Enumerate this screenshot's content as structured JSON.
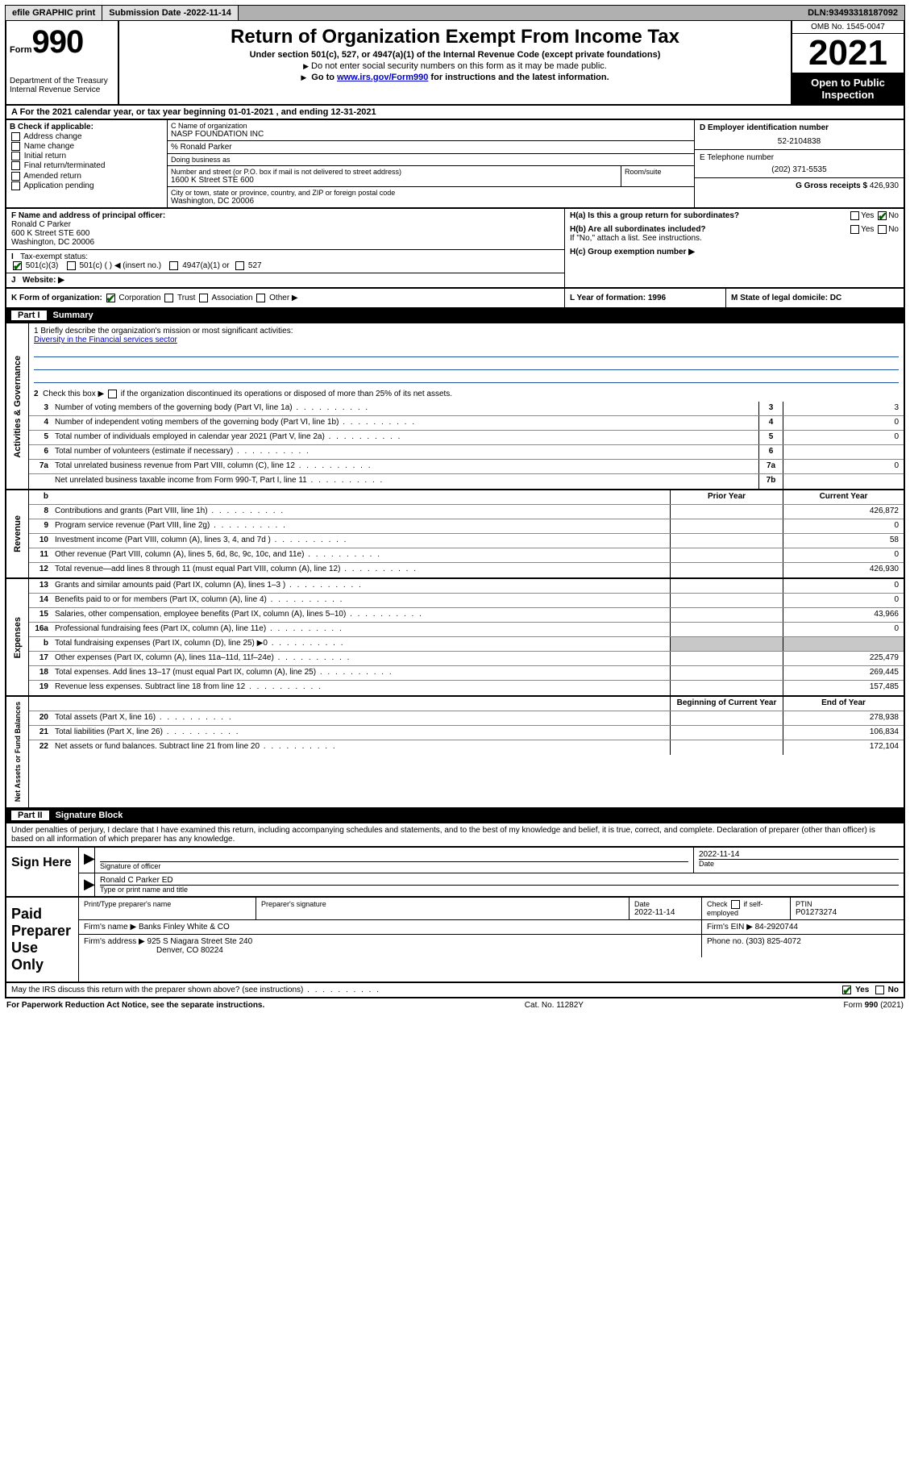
{
  "topbar": {
    "efile": "efile GRAPHIC print",
    "subdate_lbl": "Submission Date - ",
    "subdate": "2022-11-14",
    "dln_lbl": "DLN: ",
    "dln": "93493318187092"
  },
  "header": {
    "form_prefix": "Form",
    "form_num": "990",
    "dept": "Department of the Treasury",
    "irs": "Internal Revenue Service",
    "title": "Return of Organization Exempt From Income Tax",
    "sub": "Under section 501(c), 527, or 4947(a)(1) of the Internal Revenue Code (except private foundations)",
    "note1": "Do not enter social security numbers on this form as it may be made public.",
    "note2_pre": "Go to ",
    "note2_link": "www.irs.gov/Form990",
    "note2_post": " for instructions and the latest information.",
    "omb": "OMB No. 1545-0047",
    "year": "2021",
    "open": "Open to Public Inspection"
  },
  "rowA": {
    "label": "A For the 2021 calendar year, or tax year beginning ",
    "begin": "01-01-2021",
    "mid": " , and ending ",
    "end": "12-31-2021"
  },
  "B": {
    "hdr": "B Check if applicable:",
    "items": [
      "Address change",
      "Name change",
      "Initial return",
      "Final return/terminated",
      "Amended return",
      "Application pending"
    ]
  },
  "C": {
    "name_lbl": "C Name of organization",
    "name": "NASP FOUNDATION INC",
    "care_lbl": "% Ronald Parker",
    "dba_lbl": "Doing business as",
    "street_lbl": "Number and street (or P.O. box if mail is not delivered to street address)",
    "room_lbl": "Room/suite",
    "street": "1600 K Street STE 600",
    "city_lbl": "City or town, state or province, country, and ZIP or foreign postal code",
    "city": "Washington, DC  20006"
  },
  "D": {
    "lbl": "D Employer identification number",
    "val": "52-2104838"
  },
  "E": {
    "lbl": "E Telephone number",
    "val": "(202) 371-5535"
  },
  "G": {
    "lbl": "G Gross receipts $ ",
    "val": "426,930"
  },
  "F": {
    "lbl": "F  Name and address of principal officer:",
    "name": "Ronald C Parker",
    "addr1": "600 K Street STE 600",
    "addr2": "Washington, DC  20006"
  },
  "I": {
    "lbl": "Tax-exempt status:",
    "c3": "501(c)(3)",
    "c": "501(c) (  ) ◀ (insert no.)",
    "a1": "4947(a)(1) or",
    "s527": "527"
  },
  "J": {
    "lbl": "Website: ▶"
  },
  "H": {
    "a": "H(a)  Is this a group return for subordinates?",
    "b": "H(b)  Are all subordinates included?",
    "b_note": "If \"No,\" attach a list. See instructions.",
    "c": "H(c)  Group exemption number ▶",
    "yes": "Yes",
    "no": "No"
  },
  "K": {
    "lbl": "K Form of organization:",
    "corp": "Corporation",
    "trust": "Trust",
    "assoc": "Association",
    "other": "Other ▶",
    "L": "L Year of formation: 1996",
    "M": "M State of legal domicile: DC"
  },
  "part1": {
    "num": "Part I",
    "title": "Summary"
  },
  "mission": {
    "q1": "1   Briefly describe the organization's mission or most significant activities:",
    "text": "Diversity in the Financial services sector",
    "q2": "2   Check this box ▶        if the organization discontinued its operations or disposed of more than 25% of its net assets."
  },
  "gov_rows": [
    {
      "n": "3",
      "lbl": "Number of voting members of the governing body (Part VI, line 1a)",
      "box": "3",
      "val": "3"
    },
    {
      "n": "4",
      "lbl": "Number of independent voting members of the governing body (Part VI, line 1b)",
      "box": "4",
      "val": "0"
    },
    {
      "n": "5",
      "lbl": "Total number of individuals employed in calendar year 2021 (Part V, line 2a)",
      "box": "5",
      "val": "0"
    },
    {
      "n": "6",
      "lbl": "Total number of volunteers (estimate if necessary)",
      "box": "6",
      "val": ""
    },
    {
      "n": "7a",
      "lbl": "Total unrelated business revenue from Part VIII, column (C), line 12",
      "box": "7a",
      "val": "0"
    },
    {
      "n": "",
      "lbl": "Net unrelated business taxable income from Form 990-T, Part I, line 11",
      "box": "7b",
      "val": ""
    }
  ],
  "colhdr": {
    "n": "b",
    "prior": "Prior Year",
    "current": "Current Year"
  },
  "rev_rows": [
    {
      "n": "8",
      "lbl": "Contributions and grants (Part VIII, line 1h)",
      "prior": "",
      "cur": "426,872"
    },
    {
      "n": "9",
      "lbl": "Program service revenue (Part VIII, line 2g)",
      "prior": "",
      "cur": "0"
    },
    {
      "n": "10",
      "lbl": "Investment income (Part VIII, column (A), lines 3, 4, and 7d )",
      "prior": "",
      "cur": "58"
    },
    {
      "n": "11",
      "lbl": "Other revenue (Part VIII, column (A), lines 5, 6d, 8c, 9c, 10c, and 11e)",
      "prior": "",
      "cur": "0"
    },
    {
      "n": "12",
      "lbl": "Total revenue—add lines 8 through 11 (must equal Part VIII, column (A), line 12)",
      "prior": "",
      "cur": "426,930"
    }
  ],
  "exp_rows": [
    {
      "n": "13",
      "lbl": "Grants and similar amounts paid (Part IX, column (A), lines 1–3 )",
      "prior": "",
      "cur": "0"
    },
    {
      "n": "14",
      "lbl": "Benefits paid to or for members (Part IX, column (A), line 4)",
      "prior": "",
      "cur": "0"
    },
    {
      "n": "15",
      "lbl": "Salaries, other compensation, employee benefits (Part IX, column (A), lines 5–10)",
      "prior": "",
      "cur": "43,966"
    },
    {
      "n": "16a",
      "lbl": "Professional fundraising fees (Part IX, column (A), line 11e)",
      "prior": "",
      "cur": "0"
    },
    {
      "n": "b",
      "lbl": "Total fundraising expenses (Part IX, column (D), line 25) ▶0",
      "prior": "shade",
      "cur": "shade"
    },
    {
      "n": "17",
      "lbl": "Other expenses (Part IX, column (A), lines 11a–11d, 11f–24e)",
      "prior": "",
      "cur": "225,479"
    },
    {
      "n": "18",
      "lbl": "Total expenses. Add lines 13–17 (must equal Part IX, column (A), line 25)",
      "prior": "",
      "cur": "269,445"
    },
    {
      "n": "19",
      "lbl": "Revenue less expenses. Subtract line 18 from line 12",
      "prior": "",
      "cur": "157,485"
    }
  ],
  "na_hdr": {
    "prior": "Beginning of Current Year",
    "current": "End of Year"
  },
  "na_rows": [
    {
      "n": "20",
      "lbl": "Total assets (Part X, line 16)",
      "prior": "",
      "cur": "278,938"
    },
    {
      "n": "21",
      "lbl": "Total liabilities (Part X, line 26)",
      "prior": "",
      "cur": "106,834"
    },
    {
      "n": "22",
      "lbl": "Net assets or fund balances. Subtract line 21 from line 20",
      "prior": "",
      "cur": "172,104"
    }
  ],
  "vtabs": {
    "gov": "Activities & Governance",
    "rev": "Revenue",
    "exp": "Expenses",
    "na": "Net Assets or\nFund Balances"
  },
  "part2": {
    "num": "Part II",
    "title": "Signature Block"
  },
  "perjury": "Under penalties of perjury, I declare that I have examined this return, including accompanying schedules and statements, and to the best of my knowledge and belief, it is true, correct, and complete. Declaration of preparer (other than officer) is based on all information of which preparer has any knowledge.",
  "sign": {
    "title": "Sign Here",
    "sig_lbl": "Signature of officer",
    "date_lbl": "Date",
    "date": "2022-11-14",
    "name": "Ronald C Parker ED",
    "name_lbl": "Type or print name and title"
  },
  "prep": {
    "title": "Paid Preparer Use Only",
    "c1": "Print/Type preparer's name",
    "c2": "Preparer's signature",
    "c3_lbl": "Date",
    "c3": "2022-11-14",
    "c4": "Check         if self-employed",
    "c5_lbl": "PTIN",
    "c5": "P01273274",
    "firm_lbl": "Firm's name    ▶ ",
    "firm": "Banks Finley White & CO",
    "ein_lbl": "Firm's EIN ▶ ",
    "ein": "84-2920744",
    "addr_lbl": "Firm's address ▶ ",
    "addr1": "925 S Niagara Street Ste 240",
    "addr2": "Denver, CO  80224",
    "phone_lbl": "Phone no. ",
    "phone": "(303) 825-4072"
  },
  "discuss": {
    "q": "May the IRS discuss this return with the preparer shown above? (see instructions)",
    "yes": "Yes",
    "no": "No"
  },
  "footer": {
    "l": "For Paperwork Reduction Act Notice, see the separate instructions.",
    "m": "Cat. No. 11282Y",
    "r": "Form 990 (2021)"
  }
}
